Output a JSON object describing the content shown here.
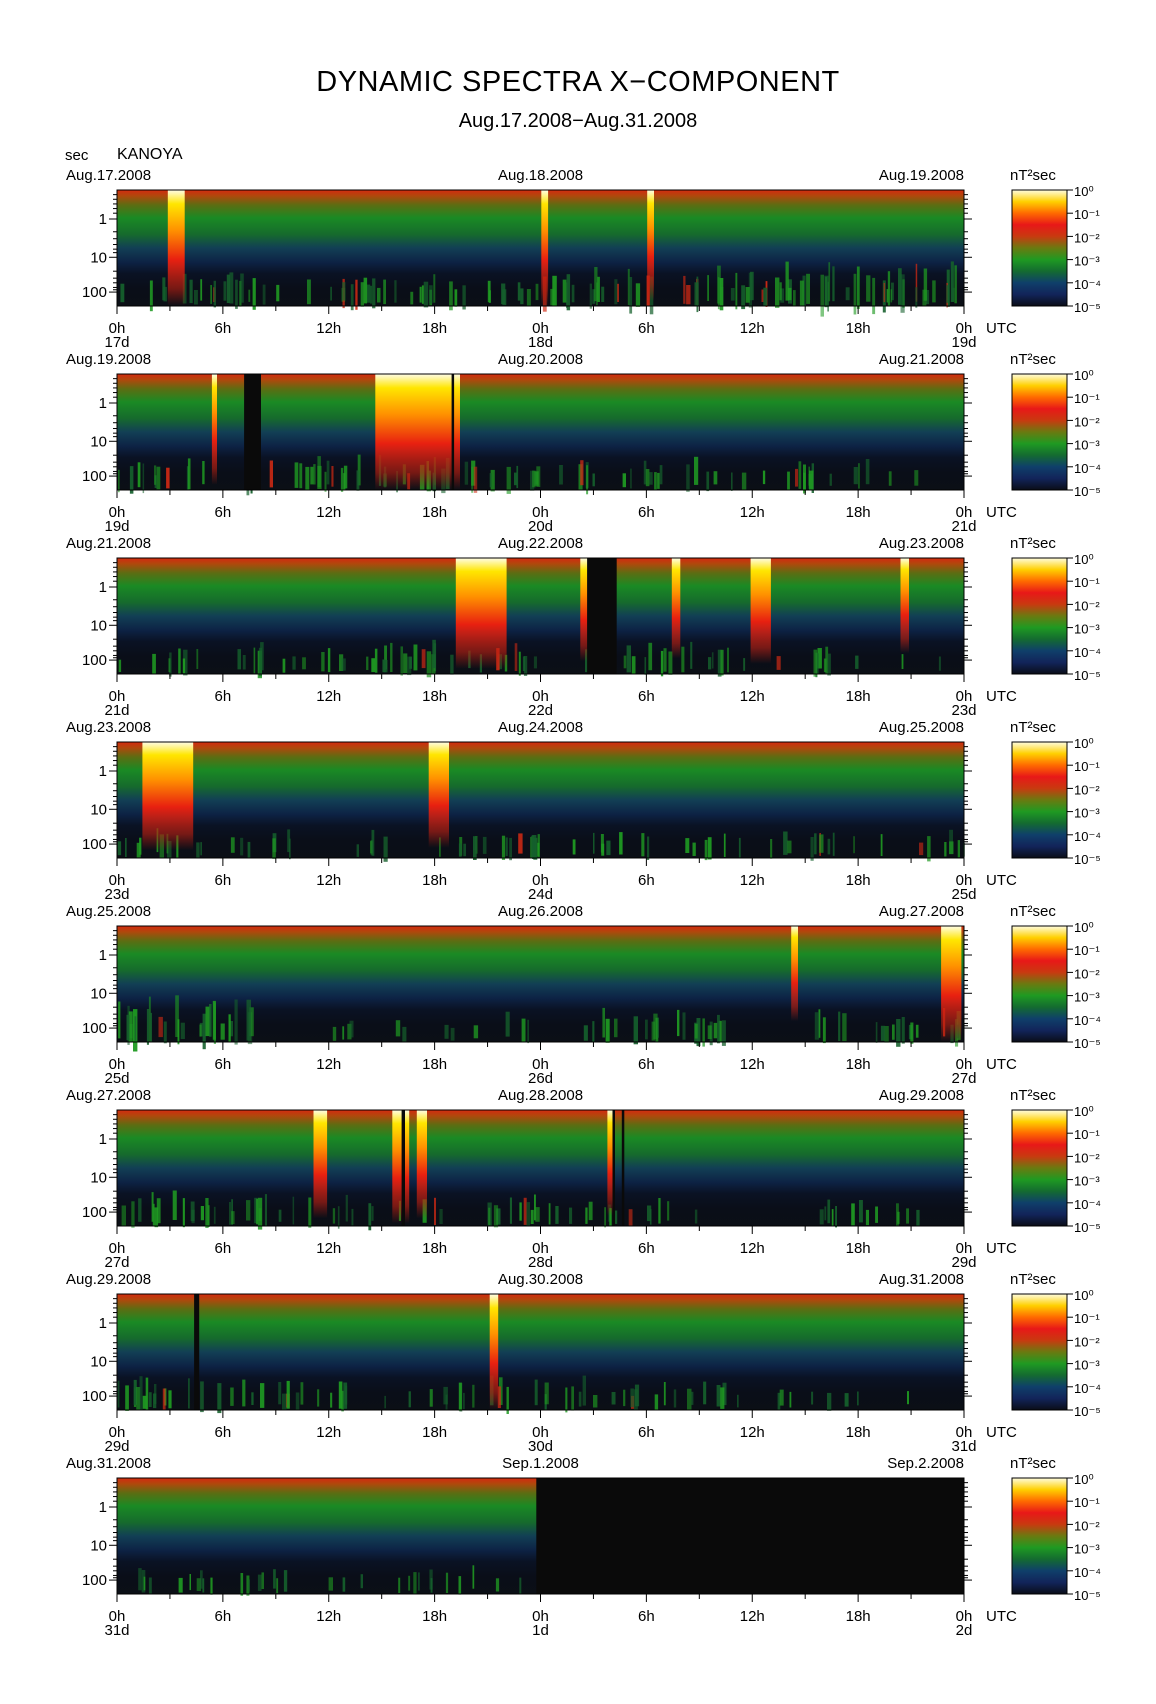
{
  "header": {
    "title": "DYNAMIC SPECTRA X−COMPONENT",
    "subtitle": "Aug.17.2008−Aug.31.2008",
    "unit": "sec",
    "station": "KANOYA"
  },
  "chart_data": {
    "type": "heatmap",
    "title": "DYNAMIC SPECTRA X−COMPONENT",
    "subtitle": "Aug.17.2008−Aug.31.2008",
    "station": "KANOYA",
    "ylabel": "sec",
    "y_scale": "log",
    "y_ticks": [
      "1",
      "10",
      "100"
    ],
    "x_ticks": [
      "0h",
      "6h",
      "12h",
      "18h",
      "0h",
      "6h",
      "12h",
      "18h",
      "0h"
    ],
    "x_unit": "UTC",
    "colorbar_unit": "nT²sec",
    "colorbar_ticks": [
      "10⁰",
      "10⁻¹",
      "10⁻²",
      "10⁻³",
      "10⁻⁴",
      "10⁻⁵"
    ],
    "colorbar_colors": [
      "#fffde0",
      "#ffd000",
      "#ff6a00",
      "#e81818",
      "#c83a10",
      "#6a7a10",
      "#1f9a22",
      "#146b30",
      "#0f3f6a",
      "#12245a",
      "#0a0d18"
    ],
    "panels": [
      {
        "date_left": "Aug.17.2008",
        "date_mid": "Aug.18.2008",
        "date_right": "Aug.19.2008",
        "days": [
          "17d",
          "18d",
          "19d"
        ],
        "bursts": [
          [
            0.07,
            0.01,
            1.0
          ],
          [
            0.505,
            0.004,
            1.0
          ],
          [
            0.63,
            0.004,
            0.9
          ]
        ],
        "gaps": [],
        "activity": [
          [
            0.0,
            0.45,
            0.5
          ],
          [
            0.45,
            0.82,
            0.7
          ],
          [
            0.82,
            1.0,
            0.85
          ]
        ]
      },
      {
        "date_left": "Aug.19.2008",
        "date_mid": "Aug.20.2008",
        "date_right": "Aug.21.2008",
        "days": [
          "19d",
          "20d",
          "21d"
        ],
        "bursts": [
          [
            0.115,
            0.003,
            0.9
          ],
          [
            0.355,
            0.05,
            1.0
          ]
        ],
        "gaps": [
          [
            0.15,
            0.17
          ],
          [
            0.395,
            0.398
          ]
        ],
        "activity": [
          [
            0.0,
            0.4,
            0.5
          ],
          [
            0.4,
            0.9,
            0.45
          ],
          [
            0.9,
            1.0,
            0.1
          ]
        ]
      },
      {
        "date_left": "Aug.21.2008",
        "date_mid": "Aug.22.2008",
        "date_right": "Aug.23.2008",
        "days": [
          "21d",
          "22d",
          "23d"
        ],
        "bursts": [
          [
            0.43,
            0.03,
            0.9
          ],
          [
            0.555,
            0.008,
            0.75
          ],
          [
            0.66,
            0.005,
            0.7
          ],
          [
            0.76,
            0.012,
            0.8
          ],
          [
            0.93,
            0.005,
            0.6
          ]
        ],
        "gaps": [
          [
            0.555,
            0.59
          ]
        ],
        "activity": [
          [
            0.0,
            0.45,
            0.45
          ],
          [
            0.45,
            0.85,
            0.4
          ],
          [
            0.85,
            1.0,
            0.1
          ]
        ]
      },
      {
        "date_left": "Aug.23.2008",
        "date_mid": "Aug.24.2008",
        "date_right": "Aug.25.2008",
        "days": [
          "23d",
          "24d",
          "25d"
        ],
        "bursts": [
          [
            0.06,
            0.03,
            0.85
          ],
          [
            0.38,
            0.012,
            0.8
          ]
        ],
        "gaps": [],
        "activity": [
          [
            0.0,
            0.55,
            0.35
          ],
          [
            0.55,
            0.92,
            0.3
          ],
          [
            0.92,
            1.0,
            0.4
          ]
        ]
      },
      {
        "date_left": "Aug.25.2008",
        "date_mid": "Aug.26.2008",
        "date_right": "Aug.27.2008",
        "days": [
          "25d",
          "26d",
          "27d"
        ],
        "bursts": [
          [
            0.8,
            0.004,
            0.6
          ],
          [
            0.985,
            0.012,
            1.0
          ]
        ],
        "gaps": [],
        "activity": [
          [
            0.0,
            0.16,
            0.85
          ],
          [
            0.16,
            0.45,
            0.15
          ],
          [
            0.45,
            0.72,
            0.45
          ],
          [
            0.8,
            1.0,
            0.45
          ]
        ]
      },
      {
        "date_left": "Aug.27.2008",
        "date_mid": "Aug.28.2008",
        "date_right": "Aug.29.2008",
        "days": [
          "27d",
          "28d",
          "29d"
        ],
        "bursts": [
          [
            0.24,
            0.008,
            0.85
          ],
          [
            0.335,
            0.01,
            0.95
          ],
          [
            0.36,
            0.006,
            0.85
          ],
          [
            0.583,
            0.004,
            0.8
          ]
        ],
        "gaps": [
          [
            0.336,
            0.34
          ],
          [
            0.585,
            0.588
          ],
          [
            0.596,
            0.599
          ]
        ],
        "activity": [
          [
            0.0,
            0.26,
            0.5
          ],
          [
            0.26,
            0.66,
            0.4
          ],
          [
            0.66,
            0.8,
            0.05
          ],
          [
            0.8,
            1.0,
            0.3
          ]
        ]
      },
      {
        "date_left": "Aug.29.2008",
        "date_mid": "Aug.30.2008",
        "date_right": "Aug.31.2008",
        "days": [
          "29d",
          "30d",
          "31d"
        ],
        "bursts": [
          [
            0.445,
            0.005,
            1.0
          ]
        ],
        "gaps": [
          [
            0.091,
            0.097
          ]
        ],
        "activity": [
          [
            0.0,
            0.28,
            0.55
          ],
          [
            0.28,
            0.36,
            0.1
          ],
          [
            0.36,
            0.72,
            0.45
          ],
          [
            0.72,
            1.0,
            0.15
          ]
        ]
      },
      {
        "date_left": "Aug.31.2008",
        "date_mid": "Sep.1.2008",
        "date_right": "Sep.2.2008",
        "days": [
          "31d",
          "1d",
          "2d"
        ],
        "bursts": [],
        "gaps": [
          [
            0.495,
            1.0
          ]
        ],
        "activity": [
          [
            0.0,
            0.5,
            0.3
          ]
        ]
      }
    ]
  }
}
